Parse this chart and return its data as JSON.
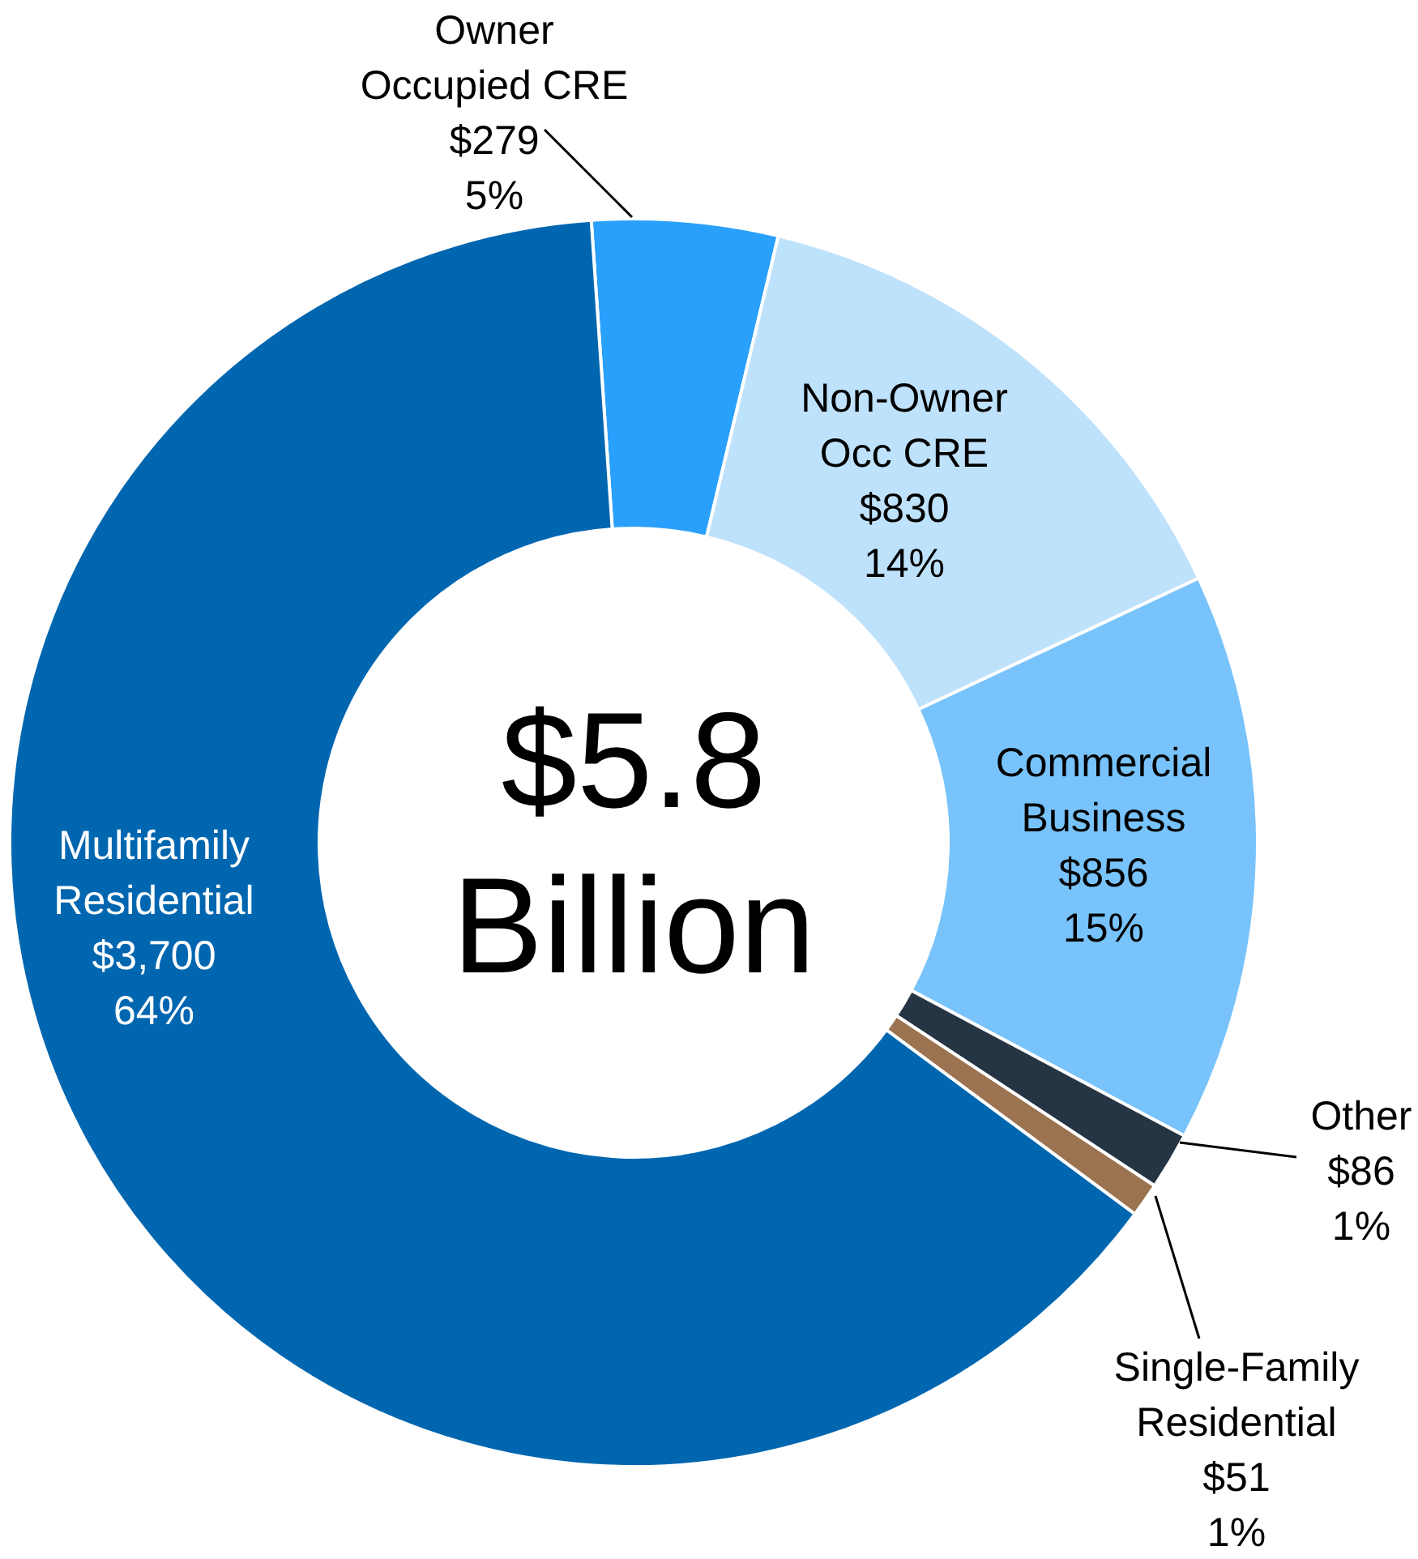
{
  "chart_data": {
    "type": "donut",
    "categories": [
      "Owner Occupied CRE",
      "Non-Owner Occ CRE",
      "Commercial Business",
      "Other",
      "Single-Family Residential",
      "Multifamily Residential"
    ],
    "values": [
      279,
      830,
      856,
      86,
      51,
      3700
    ],
    "colors": [
      "#29a0fc",
      "#bfe2fc",
      "#78c3fb",
      "#263544",
      "#9c7351",
      "#0066b0"
    ],
    "value_labels": [
      "$279\n5%",
      "$830\n14%",
      "$856\n15%",
      "$86\n1%",
      "$51\n1%",
      "$3,700\n64%"
    ],
    "annotations": [
      "$5.8\nBillion"
    ]
  }
}
